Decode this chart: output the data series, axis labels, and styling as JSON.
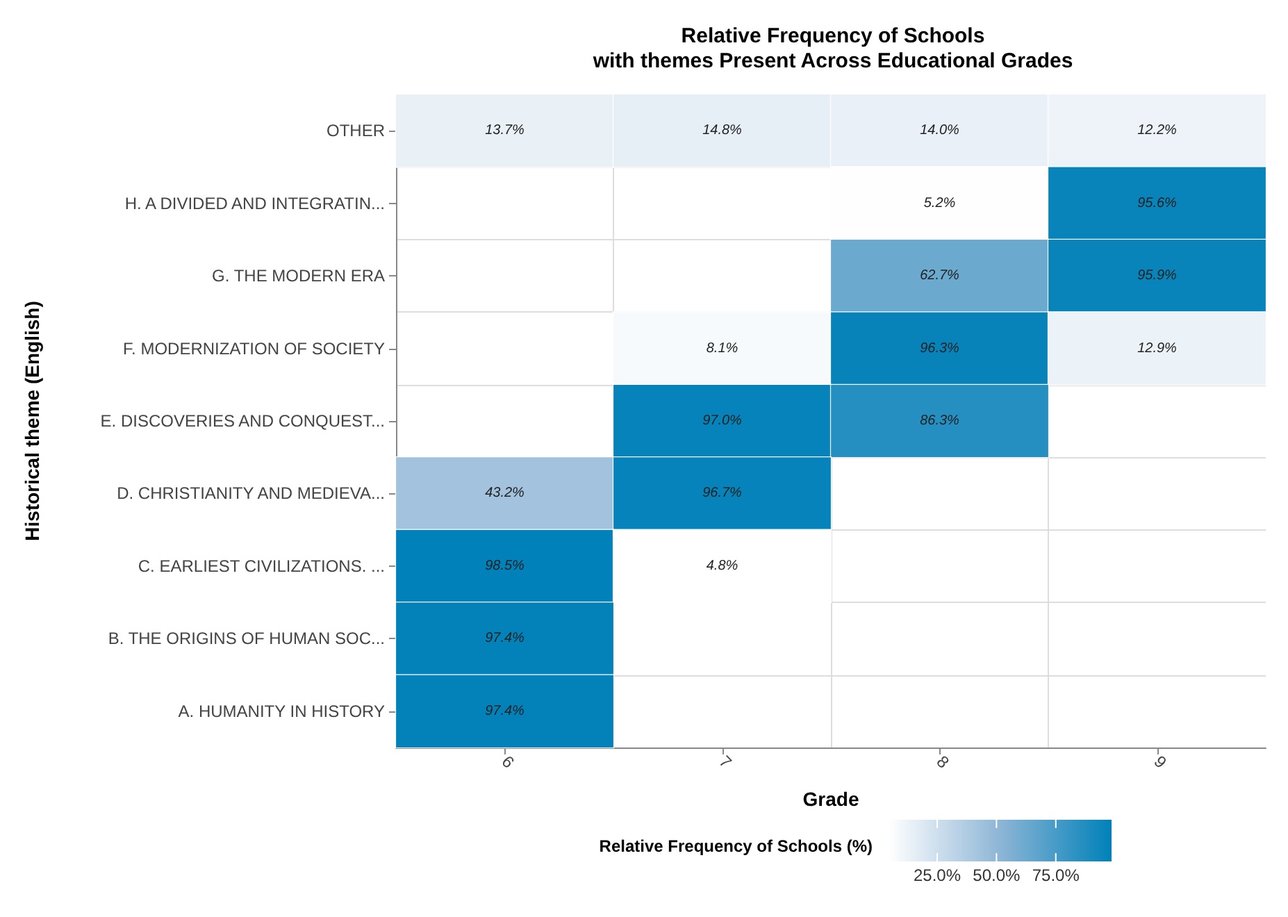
{
  "chart_data": {
    "type": "heatmap",
    "title": "Relative Frequency of Schools\nwith themes Present Across Educational Grades",
    "xlabel": "Grade",
    "ylabel": "Historical theme (English)",
    "legend_title": "Relative Frequency of Schools (%)",
    "categories": [
      "6",
      "7",
      "8",
      "9"
    ],
    "y_categories": [
      "OTHER",
      "H. A DIVIDED AND INTEGRATIN...",
      "G. THE MODERN ERA",
      "F. MODERNIZATION OF SOCIETY",
      "E. DISCOVERIES AND CONQUEST...",
      "D. CHRISTIANITY AND MEDIEVA...",
      "C. EARLIEST CIVILIZATIONS. ...",
      "B. THE ORIGINS OF HUMAN SOC...",
      "A. HUMANITY IN HISTORY"
    ],
    "cells": [
      [
        13.7,
        14.8,
        14.0,
        12.2
      ],
      [
        null,
        null,
        5.2,
        95.6
      ],
      [
        null,
        null,
        62.7,
        95.9
      ],
      [
        null,
        8.1,
        96.3,
        12.9
      ],
      [
        null,
        97.0,
        86.3,
        null
      ],
      [
        43.2,
        96.7,
        null,
        null
      ],
      [
        98.5,
        4.8,
        null,
        null
      ],
      [
        97.4,
        null,
        null,
        null
      ],
      [
        97.4,
        null,
        null,
        null
      ]
    ],
    "cell_labels": [
      [
        "13.7%",
        "14.8%",
        "14.0%",
        "12.2%"
      ],
      [
        null,
        null,
        "5.2%",
        "95.6%"
      ],
      [
        null,
        null,
        "62.7%",
        "95.9%"
      ],
      [
        null,
        "8.1%",
        "96.3%",
        "12.9%"
      ],
      [
        null,
        "97.0%",
        "86.3%",
        null
      ],
      [
        "43.2%",
        "96.7%",
        null,
        null
      ],
      [
        "98.5%",
        "4.8%",
        null,
        null
      ],
      [
        "97.4%",
        null,
        null,
        null
      ],
      [
        "97.4%",
        null,
        null,
        null
      ]
    ],
    "colors": [
      "#ffffff",
      "#8db5d6",
      "#0081b9"
    ],
    "clim": [
      4.8,
      98.5
    ],
    "cticks": [
      {
        "value": 25,
        "label": "25.0%"
      },
      {
        "value": 50,
        "label": "50.0%"
      },
      {
        "value": 75,
        "label": "75.0%"
      }
    ],
    "grid": true
  }
}
